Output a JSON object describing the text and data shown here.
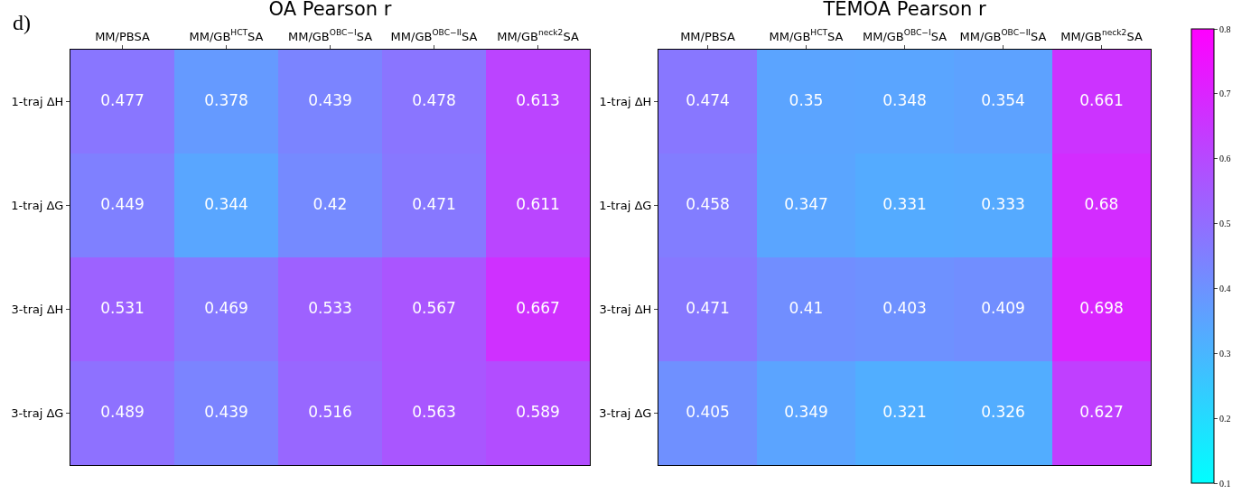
{
  "chart_data": [
    {
      "type": "heatmap",
      "title": "OA Pearson r",
      "annotations": [
        "d)"
      ],
      "categories": [
        "MM/PBSA",
        "MM/GB$^{HCT}$SA",
        "MM/GB$^{OBC−I}$SA",
        "MM/GB$^{OBC−II}$SA",
        "MM/GB$^{neck2}$SA"
      ],
      "y_categories": [
        "1-traj ΔH",
        "1-traj ΔG",
        "3-traj ΔH",
        "3-traj ΔG"
      ],
      "cells": [
        [
          0.477,
          0.378,
          0.439,
          0.478,
          0.613
        ],
        [
          0.449,
          0.344,
          0.42,
          0.471,
          0.611
        ],
        [
          0.531,
          0.469,
          0.533,
          0.567,
          0.667
        ],
        [
          0.489,
          0.439,
          0.516,
          0.563,
          0.589
        ]
      ],
      "data_labels": true
    },
    {
      "type": "heatmap",
      "title": "TEMOA Pearson r",
      "categories": [
        "MM/PBSA",
        "MM/GB$^{HCT}$SA",
        "MM/GB$^{OBC−I}$SA",
        "MM/GB$^{OBC−II}$SA",
        "MM/GB$^{neck2}$SA"
      ],
      "y_categories": [
        "1-traj ΔH",
        "1-traj ΔG",
        "3-traj ΔH",
        "3-traj ΔG"
      ],
      "cells": [
        [
          0.474,
          0.35,
          0.348,
          0.354,
          0.661
        ],
        [
          0.458,
          0.347,
          0.331,
          0.333,
          0.68
        ],
        [
          0.471,
          0.41,
          0.403,
          0.409,
          0.698
        ],
        [
          0.405,
          0.349,
          0.321,
          0.326,
          0.627
        ]
      ],
      "clim": [
        0.1,
        0.8
      ],
      "cticks": [
        0.1,
        0.2,
        0.3,
        0.4,
        0.5,
        0.6,
        0.7,
        0.8
      ],
      "data_labels": true
    }
  ]
}
